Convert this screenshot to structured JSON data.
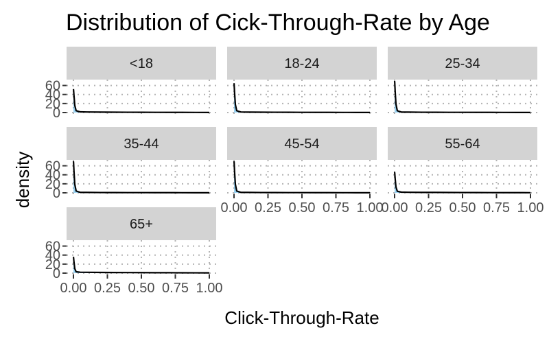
{
  "chart_data": {
    "type": "line",
    "title": "Distribution of Cick-Through-Rate by Age",
    "xlabel": "Click-Through-Rate",
    "ylabel": "density",
    "xlim": [
      0,
      1
    ],
    "ylim": [
      0,
      70
    ],
    "x_ticks": [
      0,
      0.25,
      0.5,
      0.75,
      1.0
    ],
    "x_tick_labels": [
      "0.00",
      "0.25",
      "0.50",
      "0.75",
      "1.00"
    ],
    "y_ticks": [
      0,
      20,
      40,
      60
    ],
    "y_tick_labels": [
      "0",
      "20",
      "40",
      "60"
    ],
    "grid": "dotted horizontal and vertical",
    "line_color": "#000000",
    "fill_color": "#56B4E9",
    "strip_color": "#d3d3d3",
    "panels": [
      {
        "label": "<18",
        "x": [
          0,
          0.001,
          0.004,
          0.01,
          0.02,
          0.05,
          0.1,
          0.2,
          0.3,
          0.4,
          0.5,
          0.6,
          0.7,
          0.8,
          0.9,
          1.0
        ],
        "y": [
          52,
          50,
          38,
          16,
          4,
          1.5,
          1.2,
          1.0,
          0.8,
          0.7,
          0.6,
          0.5,
          0.4,
          0.35,
          0.3,
          0.25
        ]
      },
      {
        "label": "18-24",
        "x": [
          0,
          0.001,
          0.004,
          0.01,
          0.02,
          0.05,
          0.1,
          0.2,
          0.3,
          0.4,
          0.5,
          0.6,
          0.7,
          0.8,
          0.9,
          1.0
        ],
        "y": [
          65,
          62,
          45,
          18,
          4,
          1.2,
          1.0,
          0.8,
          0.7,
          0.6,
          0.5,
          0.4,
          0.35,
          0.3,
          0.25,
          0.2
        ]
      },
      {
        "label": "25-34",
        "x": [
          0,
          0.001,
          0.004,
          0.01,
          0.02,
          0.05,
          0.1,
          0.2,
          0.3,
          0.4,
          0.5,
          0.6,
          0.7,
          0.8,
          0.9,
          1.0
        ],
        "y": [
          70,
          67,
          48,
          19,
          4,
          1.0,
          0.9,
          0.7,
          0.6,
          0.5,
          0.45,
          0.4,
          0.35,
          0.3,
          0.25,
          0.2
        ]
      },
      {
        "label": "35-44",
        "x": [
          0,
          0.001,
          0.004,
          0.01,
          0.02,
          0.05,
          0.1,
          0.2,
          0.3,
          0.4,
          0.5,
          0.6,
          0.7,
          0.8,
          0.9,
          1.0
        ],
        "y": [
          70,
          67,
          48,
          19,
          4,
          1.0,
          0.9,
          0.7,
          0.6,
          0.5,
          0.45,
          0.4,
          0.35,
          0.3,
          0.25,
          0.2
        ]
      },
      {
        "label": "45-54",
        "x": [
          0,
          0.001,
          0.004,
          0.01,
          0.02,
          0.05,
          0.1,
          0.2,
          0.3,
          0.4,
          0.5,
          0.6,
          0.7,
          0.8,
          0.9,
          1.0
        ],
        "y": [
          70,
          67,
          48,
          19,
          4,
          1.0,
          0.9,
          0.7,
          0.6,
          0.5,
          0.45,
          0.4,
          0.35,
          0.3,
          0.25,
          0.2
        ]
      },
      {
        "label": "55-64",
        "x": [
          0,
          0.001,
          0.004,
          0.01,
          0.02,
          0.05,
          0.1,
          0.2,
          0.3,
          0.4,
          0.5,
          0.6,
          0.7,
          0.8,
          0.9,
          1.0
        ],
        "y": [
          46,
          44,
          32,
          13,
          3.5,
          1.5,
          1.2,
          1.0,
          0.9,
          0.8,
          0.7,
          0.6,
          0.5,
          0.4,
          0.35,
          0.3
        ]
      },
      {
        "label": "65+",
        "x": [
          0,
          0.001,
          0.004,
          0.01,
          0.02,
          0.05,
          0.1,
          0.2,
          0.3,
          0.4,
          0.5,
          0.6,
          0.7,
          0.8,
          0.9,
          1.0
        ],
        "y": [
          36,
          34,
          25,
          10,
          3,
          2.0,
          1.8,
          1.5,
          1.3,
          1.2,
          1.1,
          1.0,
          0.9,
          0.8,
          0.7,
          0.6
        ]
      }
    ]
  }
}
